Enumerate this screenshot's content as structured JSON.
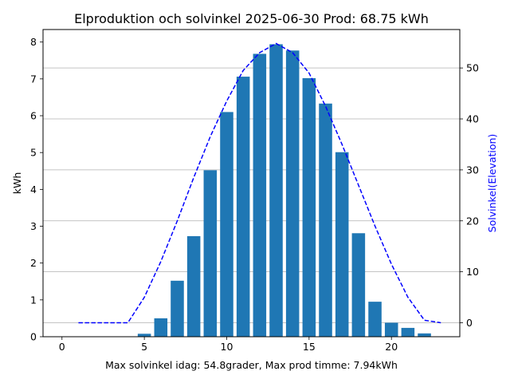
{
  "chart_data": {
    "type": "bar",
    "title": "Elproduktion och solvinkel 2025-06-30 Prod: 68.75 kWh",
    "xlabel": "Max solvinkel idag: 54.8grader, Max prod timme: 7.94kWh",
    "ylabel": "kWh",
    "y2label": "Solvinkel(Elevation)",
    "xlim": [
      -1.15,
      24.15
    ],
    "ylim": [
      0,
      8.34
    ],
    "y2lim": [
      -2.74,
      57.54
    ],
    "xticks": [
      0,
      5,
      10,
      15,
      20
    ],
    "yticks": [
      0,
      1,
      2,
      3,
      4,
      5,
      6,
      7,
      8
    ],
    "y2ticks": [
      0,
      10,
      20,
      30,
      40,
      50
    ],
    "bar_color": "#1f77b4",
    "line_color": "#0000ff",
    "grid_color": "#b0b0b0",
    "grid": "horizontal, aligned to right-axis ticks",
    "series": [
      {
        "type": "bar",
        "x": [
          5,
          6,
          7,
          8,
          9,
          10,
          11,
          12,
          13,
          14,
          15,
          16,
          17,
          18,
          19,
          20,
          21,
          22
        ],
        "values": [
          0.08,
          0.5,
          1.52,
          2.73,
          4.52,
          6.1,
          7.06,
          7.68,
          7.94,
          7.77,
          7.02,
          6.33,
          5.01,
          2.81,
          0.95,
          0.38,
          0.24,
          0.09
        ]
      },
      {
        "type": "line",
        "style": "dashed",
        "axis": "right",
        "x": [
          1,
          2,
          3,
          4,
          5,
          6,
          7,
          8,
          9,
          10,
          11,
          12,
          13,
          14,
          15,
          16,
          17,
          18,
          19,
          20,
          21,
          22,
          23
        ],
        "values": [
          0,
          0,
          0,
          0,
          5,
          12,
          20,
          28.5,
          36.5,
          43.5,
          49.5,
          53,
          54.8,
          53,
          49,
          42.5,
          35,
          27,
          19,
          11.5,
          5,
          0.5,
          0
        ]
      }
    ]
  }
}
